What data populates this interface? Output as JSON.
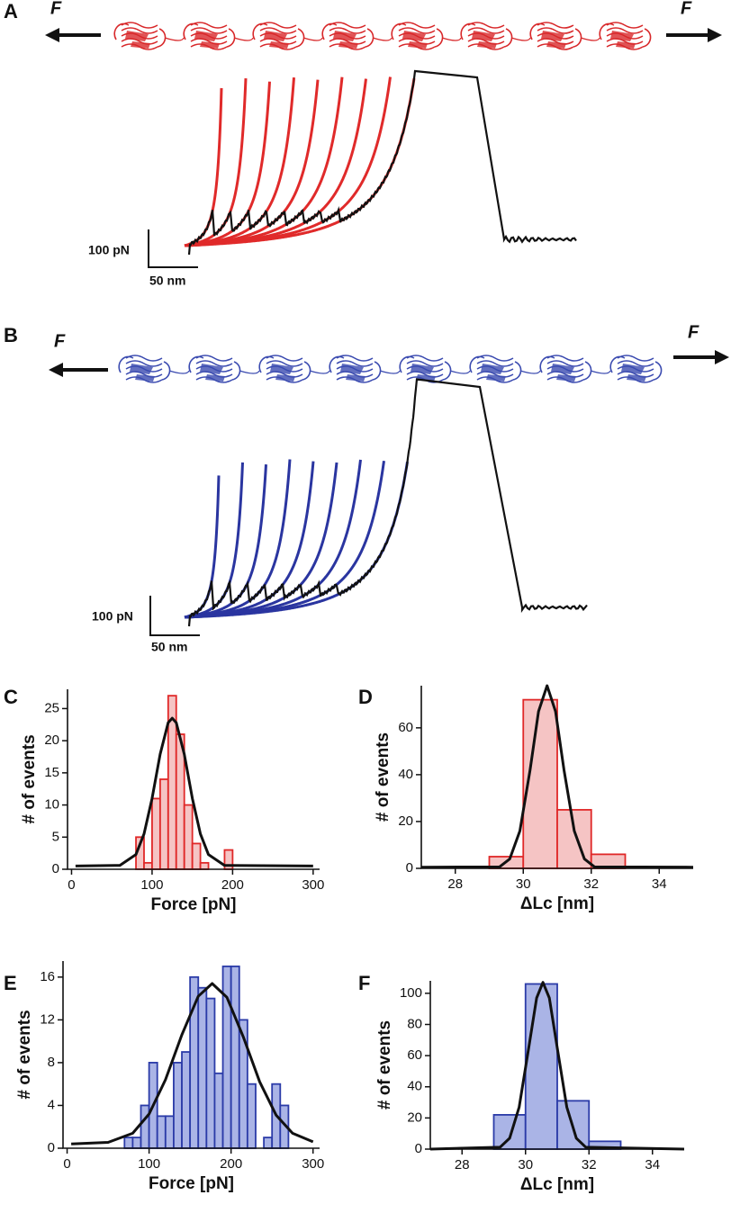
{
  "panels": [
    {
      "label": "A",
      "force_labels": [
        "F",
        "F"
      ],
      "scale_bars": [
        "100 pN",
        "50 nm"
      ]
    },
    {
      "label": "B",
      "force_labels": [
        "F",
        "F"
      ],
      "scale_bars": [
        "100 pN",
        "50 nm"
      ]
    }
  ],
  "chart_data": [
    {
      "type": "histogram",
      "panel": "C",
      "xlabel": "Force [pN]",
      "ylabel": "# of events",
      "bins": [
        80,
        90,
        100,
        110,
        120,
        130,
        140,
        150,
        160,
        170,
        180,
        190,
        200
      ],
      "counts": [
        5,
        1,
        11,
        14,
        27,
        21,
        10,
        4,
        1,
        0,
        0,
        3
      ],
      "color": "#f5c4c4",
      "edgecolor": "#e02828",
      "xlim": [
        -5,
        308
      ],
      "ylim": [
        0,
        28
      ],
      "xticks": [
        0,
        100,
        200,
        300
      ],
      "yticks": [
        0,
        5,
        10,
        15,
        20,
        25
      ],
      "fit": {
        "color": "#111111",
        "x": [
          5,
          60,
          80,
          90,
          100,
          110,
          120,
          125,
          130,
          140,
          150,
          160,
          170,
          190,
          300
        ],
        "y": [
          0.5,
          0.6,
          2.3,
          5.5,
          11.0,
          17.9,
          22.8,
          23.5,
          22.8,
          17.9,
          11.0,
          5.5,
          2.3,
          0.6,
          0.5
        ]
      }
    },
    {
      "type": "histogram",
      "panel": "D",
      "xlabel": "ΔLc [nm]",
      "ylabel": "# of events",
      "bins": [
        29,
        30,
        31,
        32,
        33
      ],
      "counts": [
        5,
        72,
        25,
        6
      ],
      "color": "#f5c4c4",
      "edgecolor": "#e02828",
      "xlim": [
        27,
        35
      ],
      "ylim": [
        0,
        78
      ],
      "xticks": [
        28,
        30,
        32,
        34
      ],
      "yticks": [
        0,
        20,
        40,
        60
      ],
      "fit": {
        "color": "#111111",
        "x": [
          27,
          29.3,
          29.6,
          29.9,
          30.2,
          30.45,
          30.7,
          30.95,
          31.2,
          31.5,
          31.8,
          32.1,
          35
        ],
        "y": [
          0.5,
          0.6,
          4,
          16,
          42,
          67,
          78,
          67,
          42,
          16,
          4,
          0.6,
          0.5
        ]
      }
    },
    {
      "type": "histogram",
      "panel": "E",
      "xlabel": "Force [pN]",
      "ylabel": "# of events",
      "bins": [
        70,
        80,
        90,
        100,
        110,
        120,
        130,
        140,
        150,
        160,
        170,
        180,
        190,
        200,
        210,
        220,
        230,
        240,
        250,
        260,
        270
      ],
      "counts": [
        1,
        1,
        4,
        8,
        3,
        3,
        8,
        9,
        16,
        15,
        14,
        7,
        17,
        17,
        12,
        6,
        0,
        1,
        6,
        4
      ],
      "color": "#aab4e6",
      "edgecolor": "#2b3ba8",
      "xlim": [
        -5,
        308
      ],
      "ylim": [
        0,
        17.5
      ],
      "xticks": [
        0,
        100,
        200,
        300
      ],
      "yticks": [
        0,
        4,
        8,
        12,
        16
      ],
      "fit": {
        "color": "#111111",
        "x": [
          5,
          50,
          80,
          100,
          120,
          140,
          160,
          177,
          195,
          215,
          235,
          255,
          275,
          300
        ],
        "y": [
          0.4,
          0.55,
          1.4,
          3.2,
          6.4,
          10.6,
          14.2,
          15.4,
          14.1,
          10.4,
          6.2,
          3.1,
          1.4,
          0.6
        ]
      }
    },
    {
      "type": "histogram",
      "panel": "F",
      "xlabel": "ΔLc [nm]",
      "ylabel": "# of events",
      "bins": [
        29,
        30,
        31,
        32,
        33
      ],
      "counts": [
        22,
        106,
        31,
        5
      ],
      "color": "#aab4e6",
      "edgecolor": "#2b3ba8",
      "xlim": [
        27,
        35
      ],
      "ylim": [
        0,
        108
      ],
      "xticks": [
        28,
        30,
        32,
        34
      ],
      "yticks": [
        0,
        20,
        40,
        60,
        80,
        100
      ],
      "fit": {
        "color": "#111111",
        "x": [
          27,
          29.2,
          29.5,
          29.8,
          30.1,
          30.35,
          30.55,
          30.75,
          31.0,
          31.3,
          31.6,
          31.9,
          35
        ],
        "y": [
          0,
          1.2,
          7,
          27,
          65,
          97,
          107,
          97,
          65,
          27,
          7,
          1.2,
          0
        ]
      }
    }
  ]
}
